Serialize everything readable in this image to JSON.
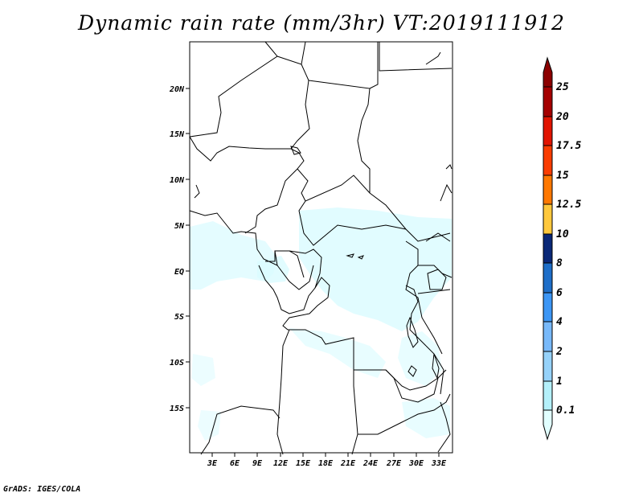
{
  "title": "Dynamic rain rate (mm/3hr) VT:2019111912",
  "footer": "GrADS: IGES/COLA",
  "map": {
    "lat_labels": [
      "20N",
      "15N",
      "10N",
      "5N",
      "EQ",
      "5S",
      "10S",
      "15S"
    ],
    "lon_labels": [
      "3E",
      "6E",
      "9E",
      "12E",
      "15E",
      "18E",
      "21E",
      "24E",
      "27E",
      "30E",
      "33E"
    ]
  },
  "colorbar": {
    "labels": [
      "0.1",
      "1",
      "2",
      "4",
      "6",
      "8",
      "10",
      "12.5",
      "15",
      "17.5",
      "20",
      "25"
    ],
    "colors": [
      "#e1ffff",
      "#b4f0fa",
      "#96d2fa",
      "#78b9fa",
      "#3c96f5",
      "#1e6ec8",
      "#0a2878",
      "#ffc83c",
      "#ff7800",
      "#fa3c00",
      "#e11400",
      "#a50000",
      "#8c0000"
    ]
  }
}
